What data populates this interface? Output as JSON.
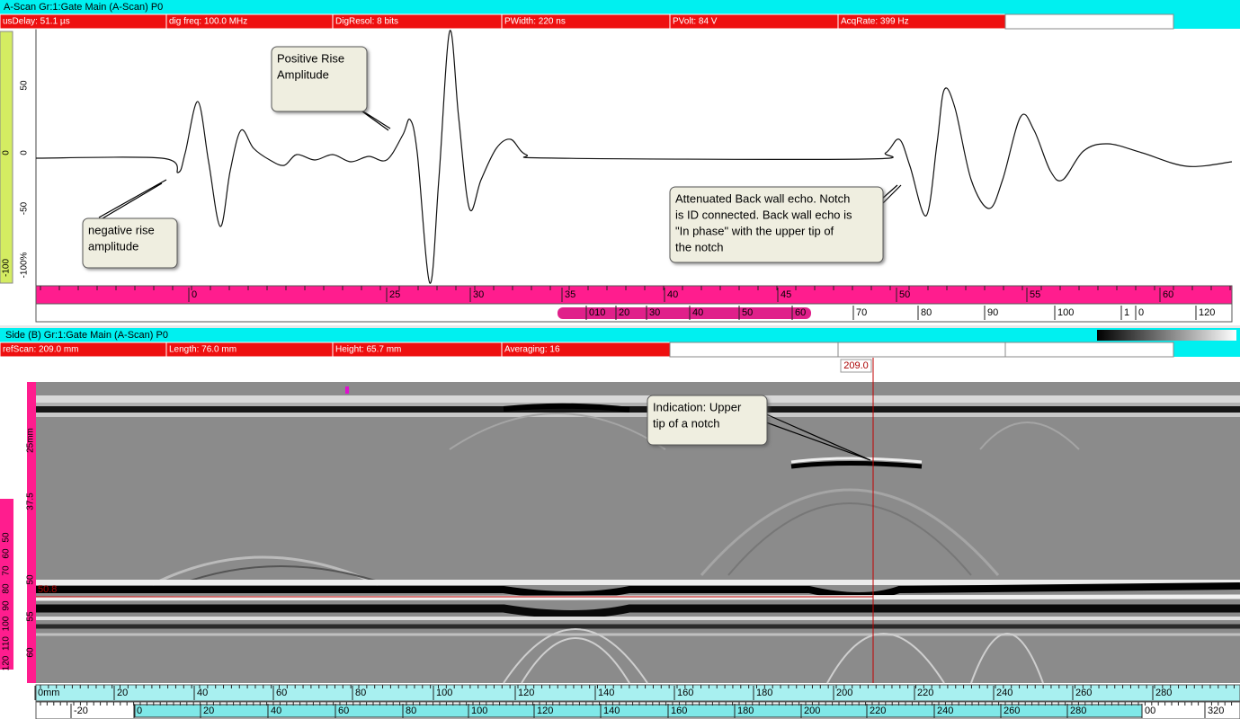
{
  "top_panel": {
    "title": "A-Scan Gr:1:Gate Main (A-Scan) P0",
    "status": [
      "usDelay: 51.1 µs",
      "dig freq: 100.0 MHz",
      "DigResol: 8 bits",
      "PWidth: 220 ns",
      "PVolt: 84 V",
      "AcqRate: 399 Hz"
    ],
    "amplitude_labels": [
      "50",
      "0",
      "-50",
      "-100%"
    ],
    "strip_labels": [
      "0",
      "-100"
    ],
    "ruler_labels": [
      "0",
      "25",
      "30",
      "35",
      "40",
      "45",
      "50",
      "55",
      "60"
    ],
    "sub_ruler_labels": [
      "010",
      "20",
      "30",
      "40",
      "50",
      "60",
      "70",
      "80",
      "90",
      "100",
      "1",
      "0",
      "120"
    ],
    "callouts": [
      {
        "lines": [
          "Positive Rise",
          "Amplitude"
        ]
      },
      {
        "lines": [
          "negative rise",
          "amplitude"
        ]
      },
      {
        "lines": [
          "Attenuated Back wall echo. Notch",
          "is ID connected. Back wall echo is",
          "\"In phase\" with the upper tip of",
          "the notch"
        ]
      }
    ]
  },
  "bottom_panel": {
    "title": "Side (B) Gr:1:Gate Main (A-Scan) P0",
    "status": [
      "refScan: 209.0 mm",
      "Length: 76.0 mm",
      "Height: 65.7 mm",
      "Averaging: 16"
    ],
    "cursor_label": "209.0",
    "reference_label": "50.8",
    "depth_labels": [
      "25mm",
      "37.5",
      "50",
      "55",
      "60"
    ],
    "strip_labels": [
      "120",
      "110",
      "100",
      "90",
      "80",
      "70",
      "60",
      "50"
    ],
    "ruler_labels": [
      "0mm",
      "20",
      "40",
      "60",
      "80",
      "100",
      "120",
      "140",
      "160",
      "180",
      "200",
      "220",
      "240",
      "260",
      "280"
    ],
    "sub_ruler_labels": [
      "-20",
      "0",
      "20",
      "40",
      "60",
      "80",
      "100",
      "120",
      "140",
      "160",
      "180",
      "200",
      "220",
      "240",
      "260",
      "280",
      "00",
      "320"
    ],
    "callout": {
      "lines": [
        "Indication: Upper",
        "tip of a notch"
      ]
    }
  }
}
